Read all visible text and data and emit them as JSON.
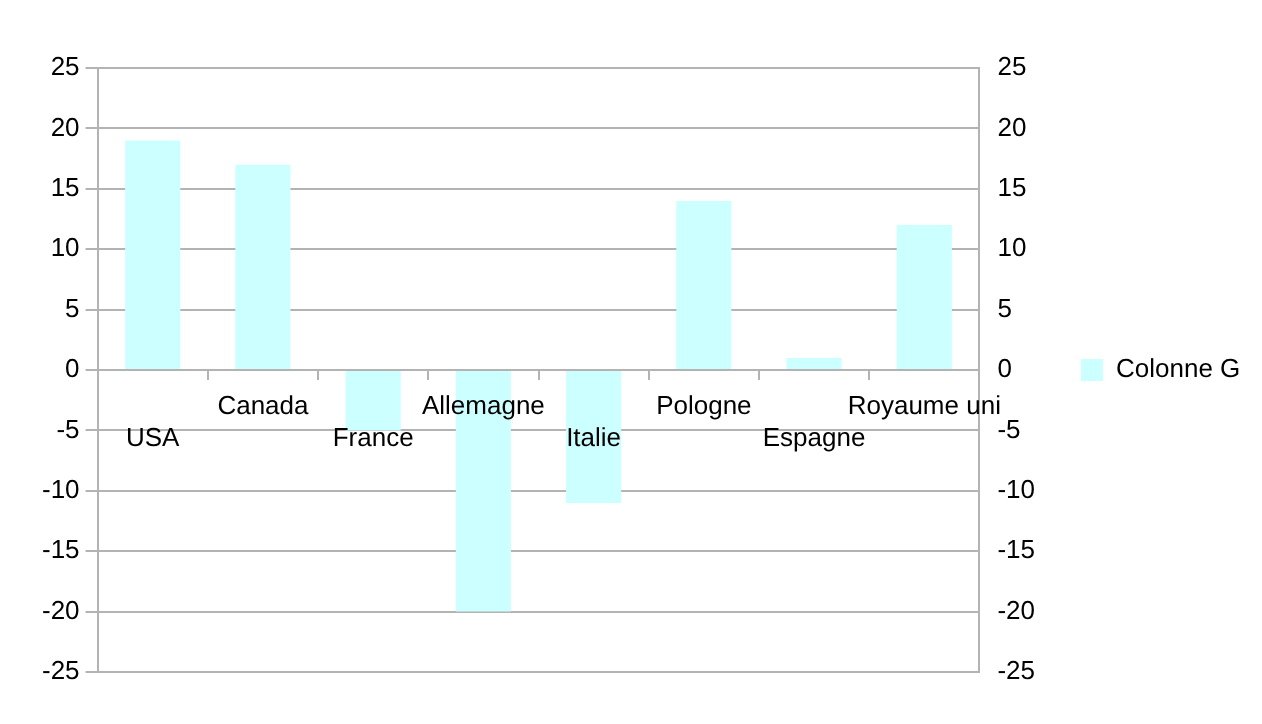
{
  "chart_data": {
    "type": "bar",
    "categories": [
      "USA",
      "Canada",
      "France",
      "Allemagne",
      "Italie",
      "Pologne",
      "Espagne",
      "Royaume uni"
    ],
    "series": [
      {
        "name": "Colonne G",
        "color": "#ccffff",
        "values": [
          19,
          17,
          -5,
          -20,
          -11,
          14,
          1,
          12
        ]
      }
    ],
    "ylim": [
      -25,
      25
    ],
    "yticks": [
      -25,
      -20,
      -15,
      -10,
      -5,
      0,
      5,
      10,
      15,
      20,
      25
    ],
    "y2lim": [
      -25,
      25
    ],
    "y2ticks": [
      -25,
      -20,
      -15,
      -10,
      -5,
      0,
      5,
      10,
      15,
      20,
      25
    ],
    "grid": "y",
    "legend": "right"
  }
}
